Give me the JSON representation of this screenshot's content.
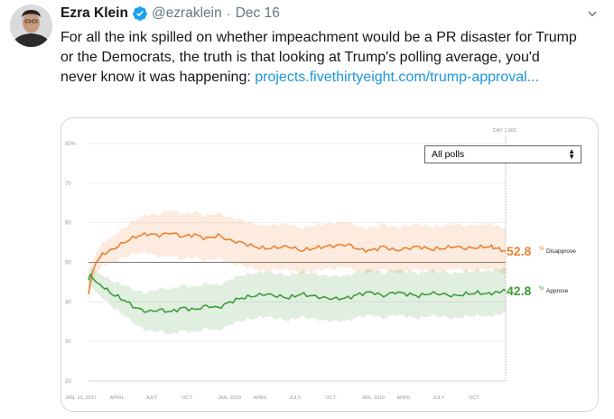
{
  "tweet": {
    "author_name": "Ezra Klein",
    "handle": "@ezraklein",
    "separator": "·",
    "date": "Dec 16",
    "text_before": "For all the ink spilled on whether impeachment would be a PR disaster for Trump or the Democrats, the truth is that looking at Trump's polling average, you'd never know it was happening: ",
    "link_text": "projects.fivethirtyeight.com/trump-approval...",
    "icons": [
      "avatar",
      "verified-badge-icon",
      "chevron-down-icon"
    ]
  },
  "colors": {
    "disapprove": "#ec8133",
    "approve": "#3e9c3a",
    "link": "#1b95e0",
    "verified": "#1da1f2"
  },
  "chart": {
    "dropdown_value": "All polls",
    "day_label": "DAY 1,061",
    "disapprove_value": "52.8",
    "disapprove_label": "Disapprove",
    "approve_value": "42.8",
    "approve_label": "Approve",
    "percent": "%"
  },
  "chart_data": {
    "type": "line",
    "ylim": [
      20,
      80
    ],
    "y_ticks": [
      20,
      30,
      40,
      50,
      60,
      70,
      80
    ],
    "y_tick_labels": [
      "20",
      "30",
      "40",
      "50",
      "60",
      "70",
      "80%"
    ],
    "x_days": [
      0,
      1061
    ],
    "x_tick_labels": [
      "JAN. 23, 2017",
      "APRIL",
      "JULY",
      "OCT.",
      "JAN. 2018",
      "APRIL",
      "JULY",
      "OCT.",
      "JAN. 2019",
      "APRIL",
      "JULY",
      "OCT."
    ],
    "x_tick_days": [
      0,
      68,
      159,
      251,
      343,
      433,
      524,
      616,
      708,
      798,
      889,
      981
    ],
    "reference_line": 50,
    "series": [
      {
        "name": "Disapprove",
        "x": [
          0,
          5,
          10,
          20,
          35,
          60,
          90,
          120,
          150,
          180,
          210,
          240,
          270,
          300,
          330,
          360,
          390,
          420,
          450,
          480,
          510,
          540,
          570,
          600,
          630,
          660,
          690,
          720,
          750,
          780,
          810,
          840,
          870,
          900,
          930,
          960,
          990,
          1020,
          1040,
          1061
        ],
        "values": [
          42.0,
          45.0,
          47.5,
          50.0,
          52.0,
          53.2,
          55.0,
          56.5,
          57.2,
          56.8,
          57.5,
          56.5,
          57.0,
          56.0,
          56.8,
          55.5,
          55.0,
          54.0,
          53.5,
          53.8,
          54.0,
          53.0,
          53.5,
          54.0,
          54.2,
          54.5,
          53.2,
          53.0,
          54.0,
          53.0,
          53.5,
          54.0,
          53.3,
          53.5,
          54.0,
          53.5,
          53.8,
          54.0,
          53.5,
          52.8
        ]
      },
      {
        "name": "Approve",
        "x": [
          0,
          5,
          10,
          20,
          35,
          60,
          90,
          120,
          150,
          180,
          210,
          240,
          270,
          300,
          330,
          360,
          390,
          420,
          450,
          480,
          510,
          540,
          570,
          600,
          630,
          660,
          690,
          720,
          750,
          780,
          810,
          840,
          870,
          900,
          930,
          960,
          990,
          1020,
          1040,
          1061
        ],
        "values": [
          45.5,
          47.0,
          46.0,
          45.0,
          44.0,
          42.0,
          40.5,
          38.5,
          37.5,
          38.0,
          37.5,
          38.5,
          38.0,
          39.0,
          38.5,
          40.0,
          41.0,
          41.5,
          42.0,
          41.5,
          41.0,
          42.0,
          41.5,
          41.0,
          40.8,
          41.0,
          42.0,
          42.5,
          41.5,
          42.5,
          42.0,
          41.5,
          42.2,
          42.0,
          41.5,
          42.0,
          42.3,
          42.0,
          42.5,
          42.8
        ]
      }
    ]
  }
}
